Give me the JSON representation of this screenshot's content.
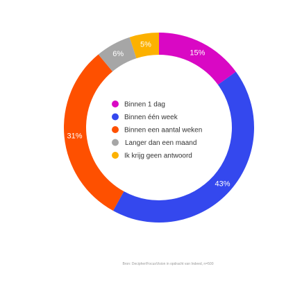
{
  "chart_data": {
    "type": "pie",
    "subtype": "donut",
    "legend_placement": "center",
    "series": [
      {
        "label": "Binnen 1 dag",
        "value": 15,
        "value_label": "15%",
        "color": "#d908c4"
      },
      {
        "label": "Binnen één week",
        "value": 43,
        "value_label": "43%",
        "color": "#3448ee"
      },
      {
        "label": "Binnen een aantal weken",
        "value": 31,
        "value_label": "31%",
        "color": "#fe5000"
      },
      {
        "label": "Langer dan een maand",
        "value": 6,
        "value_label": "6%",
        "color": "#a6a6a6"
      },
      {
        "label": "Ik krijg geen antwoord",
        "value": 5,
        "value_label": "5%",
        "color": "#fcb100"
      }
    ]
  },
  "source": "Bron: Decipher/FocusVision in opdracht van Indeed, n=500"
}
